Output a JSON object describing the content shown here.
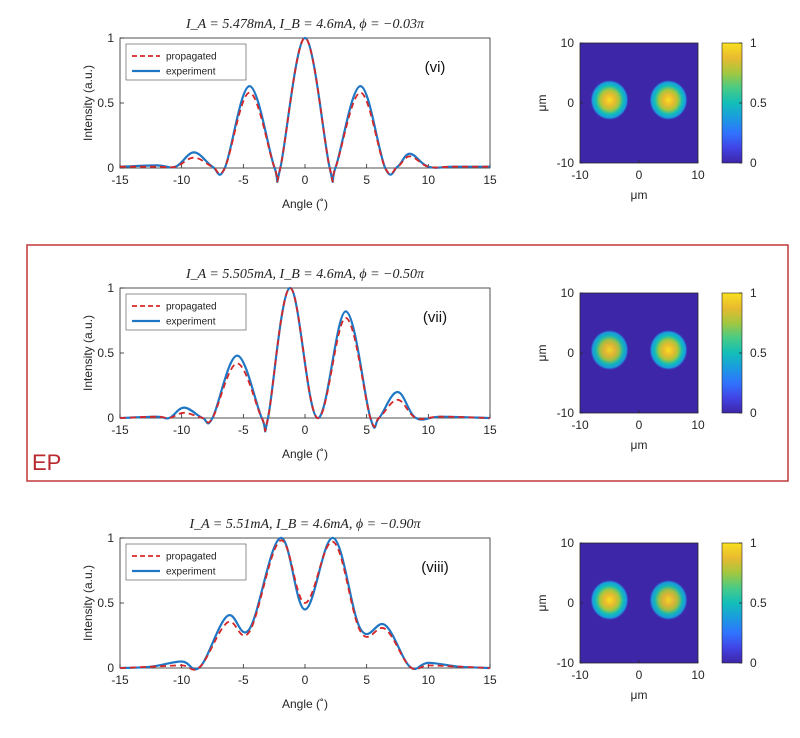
{
  "ep_label": "EP",
  "colors": {
    "propagated": "#d62728",
    "experiment": "#1f77c4",
    "highlight_frame": "#c0393b",
    "colormap": [
      "#3e26a8",
      "#4143e4",
      "#3073ff",
      "#1a9be0",
      "#13beb8",
      "#48cb86",
      "#a2c73f",
      "#e8ba2f",
      "#f9e01f"
    ]
  },
  "chart_data": [
    {
      "type": "line",
      "title": "I_A = 5.478mA,   I_B = 4.6mA,   ϕ = −0.03π",
      "panel_label": "(vi)",
      "xlabel": "Angle (˚)",
      "ylabel": "Intensity (a.u.)",
      "xlim": [
        -15,
        15
      ],
      "ylim": [
        0,
        1
      ],
      "xticks": [
        "-15",
        "-10",
        "-5",
        "0",
        "5",
        "10",
        "15"
      ],
      "yticks": [
        "0",
        "0.5",
        "1"
      ],
      "legend": [
        "propagated",
        "experiment"
      ],
      "legend_position": "top-left",
      "x": [
        -15,
        -12,
        -10.5,
        -9,
        -7.5,
        -6.5,
        -4.5,
        -2.5,
        -2,
        0,
        2,
        2.5,
        4.5,
        6.5,
        7.5,
        8.5,
        10,
        12,
        15
      ],
      "series": [
        {
          "name": "experiment",
          "style": "solid",
          "values": [
            0.01,
            0.02,
            0.01,
            0.12,
            0.01,
            0.0,
            0.63,
            0.01,
            0.0,
            1.0,
            0.0,
            0.01,
            0.63,
            0.0,
            0.01,
            0.11,
            0.01,
            0.01,
            0.01
          ]
        },
        {
          "name": "propagated",
          "style": "dashed",
          "values": [
            0.01,
            0.01,
            0.01,
            0.08,
            0.01,
            0.0,
            0.58,
            0.01,
            0.0,
            1.0,
            0.0,
            0.01,
            0.58,
            0.0,
            0.01,
            0.09,
            0.01,
            0.01,
            0.01
          ]
        }
      ]
    },
    {
      "type": "heatmap",
      "xlabel": "μm",
      "ylabel": "μm",
      "xlim": [
        -10,
        10
      ],
      "ylim": [
        -10,
        10
      ],
      "xticks": [
        "-10",
        "0",
        "10"
      ],
      "yticks": [
        "-10",
        "0",
        "10"
      ],
      "colorbar_range": [
        0,
        1
      ],
      "colorbar_ticks": [
        "0",
        "0.5",
        "1"
      ],
      "spots": [
        {
          "x": -5,
          "y": 0.5,
          "peak": 1.0
        },
        {
          "x": 5,
          "y": 0.5,
          "peak": 1.0
        }
      ]
    },
    {
      "type": "line",
      "title": "I_A = 5.505mA,   I_B = 4.6mA,   ϕ = −0.50π",
      "panel_label": "(vii)",
      "xlabel": "Angle (˚)",
      "ylabel": "Intensity (a.u.)",
      "xlim": [
        -15,
        15
      ],
      "ylim": [
        0,
        1
      ],
      "xticks": [
        "-15",
        "-10",
        "-5",
        "0",
        "5",
        "10",
        "15"
      ],
      "yticks": [
        "0",
        "0.5",
        "1"
      ],
      "legend": [
        "propagated",
        "experiment"
      ],
      "legend_position": "top-left",
      "x": [
        -15,
        -12,
        -11,
        -9.8,
        -8.3,
        -7.5,
        -5.5,
        -3.5,
        -3,
        -1.2,
        1,
        3.3,
        5.3,
        6,
        7.5,
        9,
        11,
        15
      ],
      "series": [
        {
          "name": "experiment",
          "style": "solid",
          "values": [
            0.0,
            0.01,
            0.0,
            0.08,
            0.0,
            0.0,
            0.48,
            0.0,
            0.0,
            1.0,
            0.0,
            0.82,
            0.0,
            0.0,
            0.2,
            0.0,
            0.01,
            0.0
          ]
        },
        {
          "name": "propagated",
          "style": "dashed",
          "values": [
            0.0,
            0.01,
            0.0,
            0.04,
            0.0,
            0.0,
            0.42,
            0.0,
            0.0,
            1.0,
            0.0,
            0.77,
            0.0,
            0.0,
            0.14,
            0.0,
            0.01,
            0.0
          ]
        }
      ]
    },
    {
      "type": "heatmap",
      "xlabel": "μm",
      "ylabel": "μm",
      "xlim": [
        -10,
        10
      ],
      "ylim": [
        -10,
        10
      ],
      "xticks": [
        "-10",
        "0",
        "10"
      ],
      "yticks": [
        "-10",
        "0",
        "10"
      ],
      "colorbar_range": [
        0,
        1
      ],
      "colorbar_ticks": [
        "0",
        "0.5",
        "1"
      ],
      "spots": [
        {
          "x": -5,
          "y": 0.5,
          "peak": 0.95
        },
        {
          "x": 5,
          "y": 0.5,
          "peak": 1.0
        }
      ]
    },
    {
      "type": "line",
      "title": "I_A = 5.51mA,   I_B = 4.6mA,   ϕ = −0.90π",
      "panel_label": "(viii)",
      "xlabel": "Angle (˚)",
      "ylabel": "Intensity (a.u.)",
      "xlim": [
        -15,
        15
      ],
      "ylim": [
        0,
        1
      ],
      "xticks": [
        "-15",
        "-10",
        "-5",
        "0",
        "5",
        "10",
        "15"
      ],
      "yticks": [
        "0",
        "0.5",
        "1"
      ],
      "legend": [
        "propagated",
        "experiment"
      ],
      "legend_position": "top-left",
      "x": [
        -15,
        -12.5,
        -10,
        -8.5,
        -6.3,
        -4.5,
        -2,
        0,
        2.3,
        4.5,
        6.5,
        8.5,
        10,
        12.5,
        15
      ],
      "series": [
        {
          "name": "experiment",
          "style": "solid",
          "values": [
            0.0,
            0.01,
            0.05,
            0.01,
            0.4,
            0.3,
            1.0,
            0.45,
            1.0,
            0.3,
            0.33,
            0.01,
            0.04,
            0.01,
            0.0
          ]
        },
        {
          "name": "propagated",
          "style": "dashed",
          "values": [
            0.0,
            0.01,
            0.02,
            0.01,
            0.35,
            0.28,
            0.98,
            0.5,
            0.97,
            0.28,
            0.3,
            0.01,
            0.02,
            0.01,
            0.0
          ]
        }
      ]
    },
    {
      "type": "heatmap",
      "xlabel": "μm",
      "ylabel": "μm",
      "xlim": [
        -10,
        10
      ],
      "ylim": [
        -10,
        10
      ],
      "xticks": [
        "-10",
        "0",
        "10"
      ],
      "yticks": [
        "-10",
        "0",
        "10"
      ],
      "colorbar_range": [
        0,
        1
      ],
      "colorbar_ticks": [
        "0",
        "0.5",
        "1"
      ],
      "spots": [
        {
          "x": -5,
          "y": 0.5,
          "peak": 1.0
        },
        {
          "x": 5,
          "y": 0.5,
          "peak": 0.95
        }
      ]
    }
  ]
}
